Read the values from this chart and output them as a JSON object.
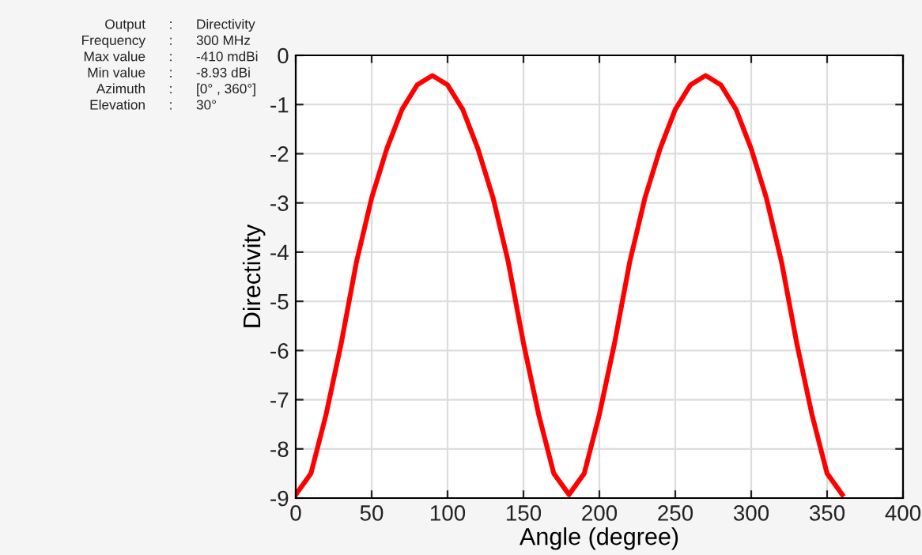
{
  "chart_data": {
    "type": "line",
    "xlabel": "Angle (degree)",
    "ylabel": "Directivity",
    "annotations": [
      "Output",
      ":",
      "Directivity",
      "Frequency",
      ":",
      "300 MHz",
      "Max value",
      ":",
      "-410 mdBi",
      "Min value",
      ":",
      "-8.93 dBi",
      "Azimuth",
      ":",
      "[0° , 360°]",
      "Elevation",
      ":",
      "30°"
    ],
    "x": [
      0,
      10,
      20,
      30,
      40,
      50,
      60,
      70,
      80,
      90,
      100,
      110,
      120,
      130,
      140,
      150,
      160,
      170,
      180,
      190,
      200,
      210,
      220,
      230,
      240,
      250,
      260,
      270,
      280,
      290,
      300,
      310,
      320,
      330,
      340,
      350,
      360
    ],
    "series": [
      {
        "color": "#ff0000",
        "values": [
          -8.93,
          -8.5,
          -7.3,
          -5.85,
          -4.2,
          -2.9,
          -1.9,
          -1.1,
          -0.6,
          -0.41,
          -0.6,
          -1.1,
          -1.9,
          -2.9,
          -4.2,
          -5.85,
          -7.3,
          -8.5,
          -8.93,
          -8.5,
          -7.3,
          -5.85,
          -4.2,
          -2.9,
          -1.9,
          -1.1,
          -0.6,
          -0.41,
          -0.6,
          -1.1,
          -1.9,
          -2.9,
          -4.2,
          -5.85,
          -7.3,
          -8.5,
          -8.93
        ]
      }
    ],
    "xlim": [
      0,
      400
    ],
    "xticks": [
      0,
      50,
      100,
      150,
      200,
      250,
      300,
      350,
      400
    ],
    "ylim": [
      -9,
      0
    ],
    "yticks": [
      -9,
      -8,
      -7,
      -6,
      -5,
      -4,
      -3,
      -2,
      -1,
      0
    ],
    "grid": true,
    "line_style": "solid",
    "marker": "none"
  }
}
